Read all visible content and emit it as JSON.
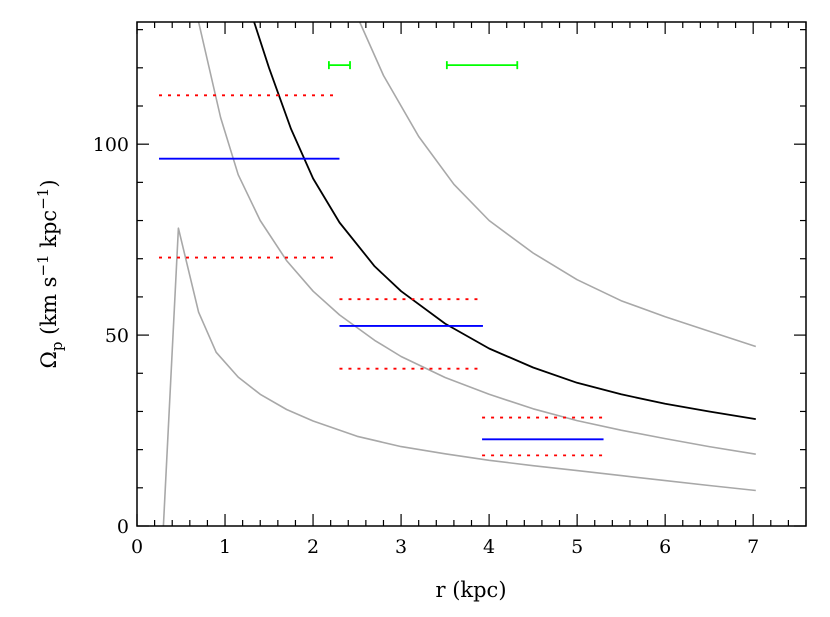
{
  "chart_data": {
    "type": "line",
    "xlabel": "r (kpc)",
    "ylabel": {
      "pre": "Ω",
      "sub": "p",
      "mid": " (km s",
      "sup1": "−1",
      "mid2": " kpc",
      "sup2": "−1",
      "post": ")"
    },
    "xlim": [
      0,
      7.6
    ],
    "ylim": [
      0,
      132
    ],
    "xticks": [
      0,
      1,
      2,
      3,
      4,
      5,
      6,
      7
    ],
    "yticks": [
      0,
      50,
      100
    ],
    "xtick_labels": [
      "0",
      "1",
      "2",
      "3",
      "4",
      "5",
      "6",
      "7"
    ],
    "ytick_labels": [
      "0",
      "50",
      "100"
    ],
    "grid": false,
    "colors": {
      "curve_gray": "#a8a8a8",
      "curve_black": "#000000",
      "solid_segment": "#0000ff",
      "dotted_segment": "#ff0000",
      "error_bar": "#00ff00"
    },
    "curves": [
      {
        "name": "",
        "color": "#a8a8a8",
        "points": [
          [
            0.3,
            0
          ],
          [
            0.47,
            78
          ],
          [
            0.7,
            56
          ],
          [
            0.9,
            45.5
          ],
          [
            1.15,
            39
          ],
          [
            1.4,
            34.5
          ],
          [
            1.7,
            30.5
          ],
          [
            2.0,
            27.5
          ],
          [
            2.5,
            23.5
          ],
          [
            3.0,
            20.8
          ],
          [
            3.5,
            18.9
          ],
          [
            4.0,
            17.2
          ],
          [
            4.5,
            15.8
          ],
          [
            5.0,
            14.5
          ],
          [
            5.5,
            13.2
          ],
          [
            6.0,
            11.9
          ],
          [
            6.5,
            10.6
          ],
          [
            7.03,
            9.3
          ]
        ]
      },
      {
        "name": "",
        "color": "#a8a8a8",
        "points": [
          [
            0.7,
            132
          ],
          [
            0.95,
            107
          ],
          [
            1.15,
            92
          ],
          [
            1.4,
            80
          ],
          [
            1.7,
            69.5
          ],
          [
            2.0,
            61.5
          ],
          [
            2.3,
            55.3
          ],
          [
            2.7,
            48.6
          ],
          [
            3.0,
            44.4
          ],
          [
            3.5,
            38.9
          ],
          [
            4.0,
            34.5
          ],
          [
            4.5,
            30.7
          ],
          [
            5.0,
            27.6
          ],
          [
            5.5,
            25.1
          ],
          [
            6.0,
            22.9
          ],
          [
            6.5,
            20.8
          ],
          [
            7.03,
            18.8
          ]
        ]
      },
      {
        "name": "",
        "color": "#000000",
        "points": [
          [
            1.33,
            132
          ],
          [
            1.5,
            120
          ],
          [
            1.75,
            104
          ],
          [
            2.0,
            91
          ],
          [
            2.3,
            79.5
          ],
          [
            2.7,
            68
          ],
          [
            3.0,
            61.5
          ],
          [
            3.5,
            53
          ],
          [
            4.0,
            46.5
          ],
          [
            4.5,
            41.5
          ],
          [
            5.0,
            37.5
          ],
          [
            5.5,
            34.5
          ],
          [
            6.0,
            32
          ],
          [
            6.5,
            30
          ],
          [
            7.03,
            28
          ]
        ]
      },
      {
        "name": "",
        "color": "#a8a8a8",
        "points": [
          [
            2.53,
            132
          ],
          [
            2.8,
            118
          ],
          [
            3.2,
            102
          ],
          [
            3.6,
            89.5
          ],
          [
            4.0,
            80
          ],
          [
            4.5,
            71.5
          ],
          [
            5.0,
            64.5
          ],
          [
            5.5,
            59
          ],
          [
            6.0,
            54.8
          ],
          [
            6.5,
            51
          ],
          [
            7.03,
            47
          ]
        ]
      }
    ],
    "solid_segments": [
      {
        "x": [
          0.25,
          2.3
        ],
        "y": 96.2
      },
      {
        "x": [
          2.3,
          3.93
        ],
        "y": 52.4
      },
      {
        "x": [
          3.92,
          5.3
        ],
        "y": 22.7
      }
    ],
    "dotted_segments": [
      {
        "x": [
          0.25,
          2.25
        ],
        "y": 112.8
      },
      {
        "x": [
          0.25,
          2.25
        ],
        "y": 70.3
      },
      {
        "x": [
          2.3,
          3.93
        ],
        "y": 59.4
      },
      {
        "x": [
          2.3,
          3.93
        ],
        "y": 41.2
      },
      {
        "x": [
          3.92,
          5.3
        ],
        "y": 28.4
      },
      {
        "x": [
          3.92,
          5.3
        ],
        "y": 18.5
      }
    ],
    "error_bars": [
      {
        "x": [
          2.18,
          2.42
        ],
        "y": 120.7
      },
      {
        "x": [
          3.52,
          4.32
        ],
        "y": 120.7
      }
    ]
  }
}
